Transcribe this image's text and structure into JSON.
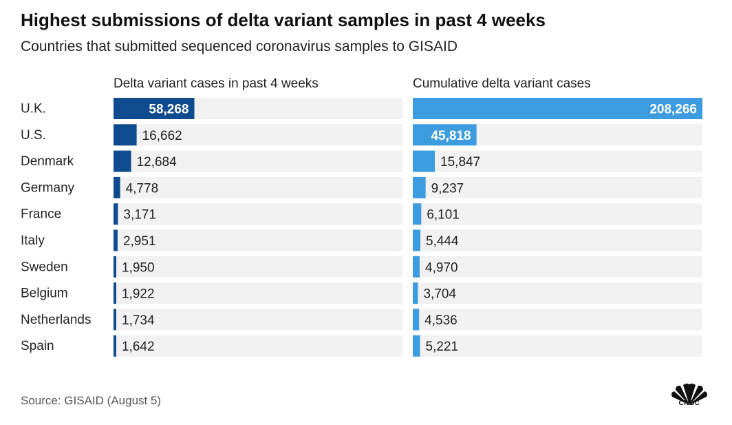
{
  "title": "Highest submissions of delta variant samples in past 4 weeks",
  "subtitle": "Countries that submitted sequenced coronavirus samples to GISAID",
  "source": "Source: GISAID (August 5)",
  "logo": "CNBC",
  "chart_data": [
    {
      "type": "bar",
      "orientation": "horizontal",
      "title": "Delta variant cases in past 4 weeks",
      "categories": [
        "U.K.",
        "U.S.",
        "Denmark",
        "Germany",
        "France",
        "Italy",
        "Sweden",
        "Belgium",
        "Netherlands",
        "Spain"
      ],
      "values": [
        58268,
        16662,
        12684,
        4778,
        3171,
        2951,
        1950,
        1922,
        1734,
        1642
      ],
      "labels": [
        "58,268",
        "16,662",
        "12,684",
        "4,778",
        "3,171",
        "2,951",
        "1,950",
        "1,922",
        "1,734",
        "1,642"
      ],
      "color": "#0f4c8f",
      "xlim": [
        0,
        208266
      ]
    },
    {
      "type": "bar",
      "orientation": "horizontal",
      "title": "Cumulative delta variant cases",
      "categories": [
        "U.K.",
        "U.S.",
        "Denmark",
        "Germany",
        "France",
        "Italy",
        "Sweden",
        "Belgium",
        "Netherlands",
        "Spain"
      ],
      "values": [
        208266,
        45818,
        15847,
        9237,
        6101,
        5444,
        4970,
        3704,
        4536,
        5221
      ],
      "labels": [
        "208,266",
        "45,818",
        "15,847",
        "9,237",
        "6,101",
        "5,444",
        "4,970",
        "3,704",
        "4,536",
        "5,221"
      ],
      "color": "#3d9be0",
      "xlim": [
        0,
        208266
      ]
    }
  ]
}
